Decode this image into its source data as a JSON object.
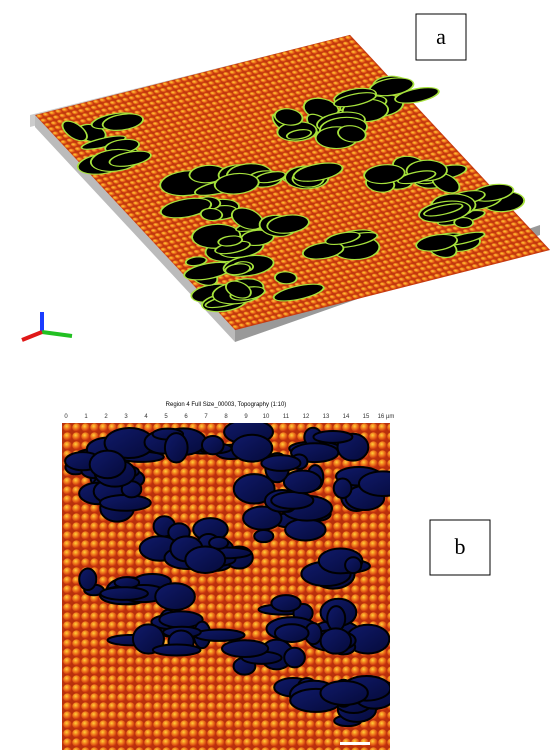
{
  "panels": [
    {
      "label": "a"
    },
    {
      "label": "b",
      "title": "Region 4 Full Size_00003, Topography (1:10)",
      "x_ticks": [
        "0",
        "1",
        "2",
        "3",
        "4",
        "5",
        "6",
        "7",
        "8",
        "9",
        "10",
        "11",
        "12",
        "13",
        "14",
        "15",
        "16 µm"
      ]
    }
  ]
}
